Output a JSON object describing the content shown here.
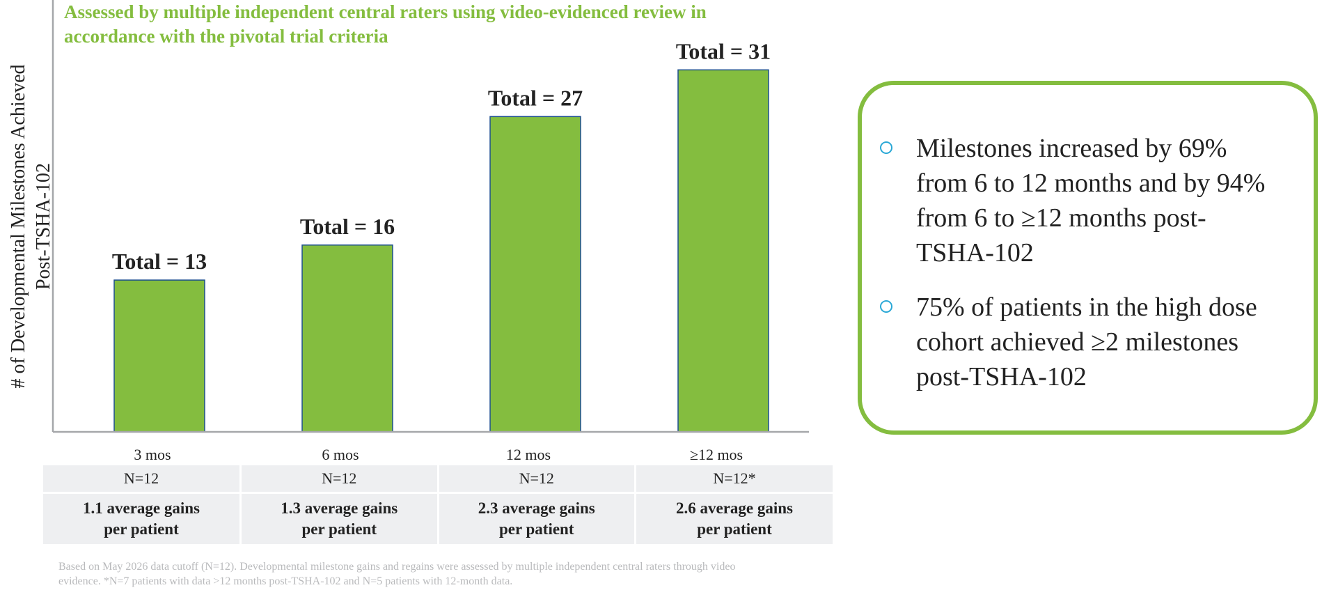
{
  "chart_data": {
    "type": "bar",
    "title": "",
    "subtitle": "Assessed by multiple independent central raters using video-evidenced review in accordance with the pivotal trial criteria",
    "ylabel": "# of Developmental Milestones Achieved Post-TSHA-102",
    "xlabel": "",
    "categories": [
      "3 mos",
      "6 mos",
      "12 mos",
      "≥12 mos"
    ],
    "values": [
      13,
      16,
      27,
      31
    ],
    "data_labels": [
      "Total = 13",
      "Total = 16",
      "Total = 27",
      "Total = 31"
    ],
    "ylim": [
      0,
      34
    ],
    "grid": false,
    "bar_color": "#84bd3f",
    "bar_edge_color": "#1d4f8f"
  },
  "table": {
    "n_row": [
      "N=12",
      "N=12",
      "N=12",
      "N=12*"
    ],
    "gain_row": [
      "1.1 average gains per patient",
      "1.3 average gains per patient",
      "2.3 average gains per patient",
      "2.6 average gains per patient"
    ]
  },
  "callout": {
    "bullets": [
      "Milestones increased by 69% from 6 to 12 months and by 94% from 6 to ≥12 months post-TSHA-102",
      "75% of patients in the high dose cohort achieved ≥2 milestones post-TSHA-102"
    ],
    "border_color": "#84bd3f",
    "bullet_icon": "hollow-circle-icon",
    "bullet_color": "#2aa8d6"
  },
  "footnote": "Based on May 2026 data cutoff (N=12). Developmental milestone gains and regains were assessed by multiple independent central raters through video evidence. *N=7 patients with data >12 months post-TSHA-102 and N=5 patients with 12-month data."
}
